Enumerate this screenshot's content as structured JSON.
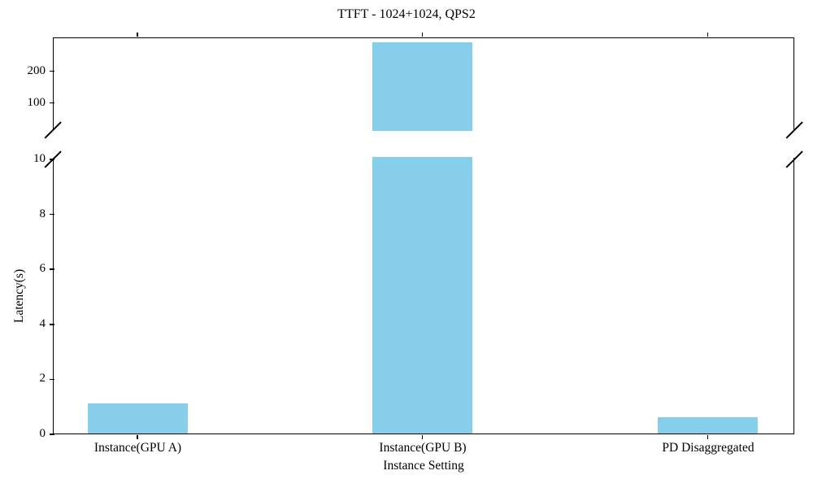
{
  "chart_data": {
    "type": "bar",
    "title": "TTFT - 1024+1024, QPS2",
    "xlabel": "Instance Setting",
    "ylabel": "Latency(s)",
    "categories": [
      "Instance(GPU A)",
      "Instance(GPU B)",
      "PD Disaggregated"
    ],
    "values": [
      1.1,
      295,
      0.6
    ],
    "bar_color": "#87CEEB",
    "axis_color": "#000000",
    "background_color": "#ffffff",
    "grid": false,
    "legend": null,
    "broken_axis": {
      "lower_ylim": [
        0,
        10
      ],
      "lower_ticks": [
        0,
        2,
        4,
        6,
        8,
        10
      ],
      "upper_ylim": [
        15,
        307
      ],
      "upper_ticks": [
        100,
        200
      ]
    }
  }
}
